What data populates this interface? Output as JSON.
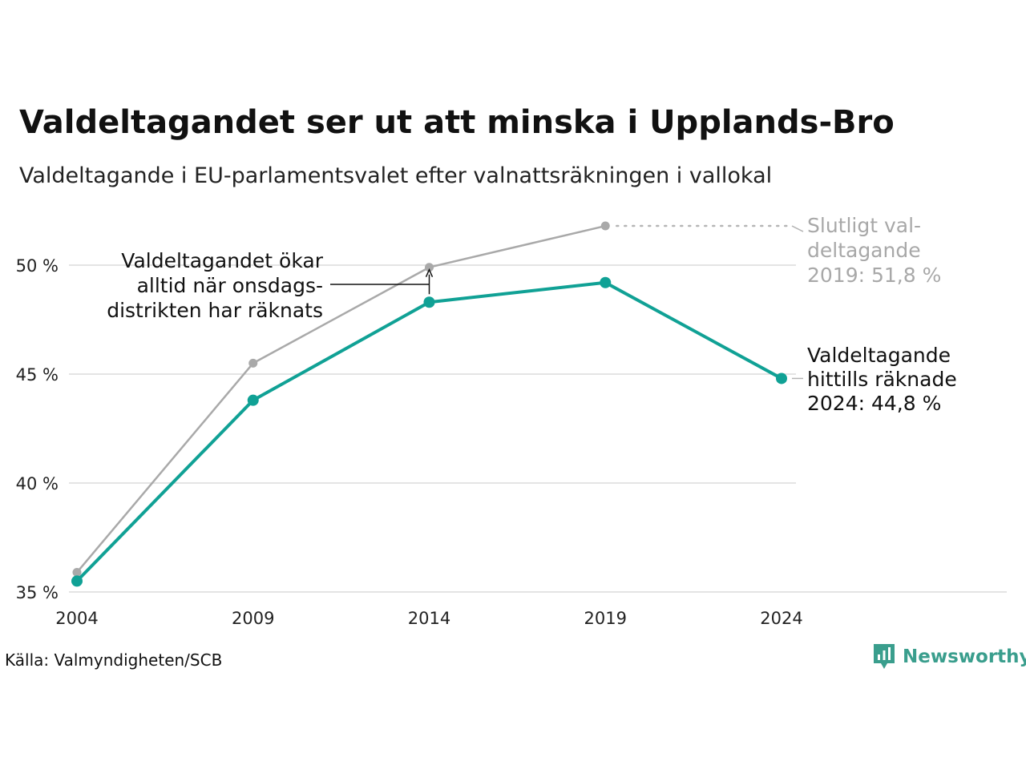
{
  "title": "Valdeltagandet ser ut att minska i Upplands-Bro",
  "subtitle": "Valdeltagande i EU-parlamentsvalet efter valnattsräkningen i vallokal",
  "source": "Källa: Valmyndigheten/SCB",
  "brand": "Newsworthy",
  "colors": {
    "primary": "#10a195",
    "secondary": "#a9a9a9",
    "grid": "#e4e4e4",
    "brand": "#3a9e8d"
  },
  "chart_data": {
    "type": "line",
    "x": [
      2004,
      2009,
      2014,
      2019,
      2024
    ],
    "x_tick_labels": [
      "2004",
      "2009",
      "2014",
      "2019",
      "2024"
    ],
    "y_ticks": [
      35,
      40,
      45,
      50
    ],
    "y_tick_labels": [
      "35 %",
      "40 %",
      "45 %",
      "50 %"
    ],
    "ylim": [
      35,
      52.5
    ],
    "grid": true,
    "series": [
      {
        "values": [
          35.9,
          45.5,
          49.9,
          51.8,
          null
        ],
        "color": "#a9a9a9"
      },
      {
        "values": [
          35.5,
          43.8,
          48.3,
          49.2,
          44.8
        ],
        "color": "#10a195"
      }
    ],
    "annotations": {
      "increase": [
        "Valdeltagandet ökar",
        "alltid när onsdags-",
        "distrikten har räknats"
      ],
      "final_2019": [
        "Slutligt val-",
        "deltagande",
        "2019: 51,8 %"
      ],
      "counted_2024": [
        "Valdeltagande",
        "hittills räknade",
        "2024: 44,8 %"
      ]
    }
  }
}
